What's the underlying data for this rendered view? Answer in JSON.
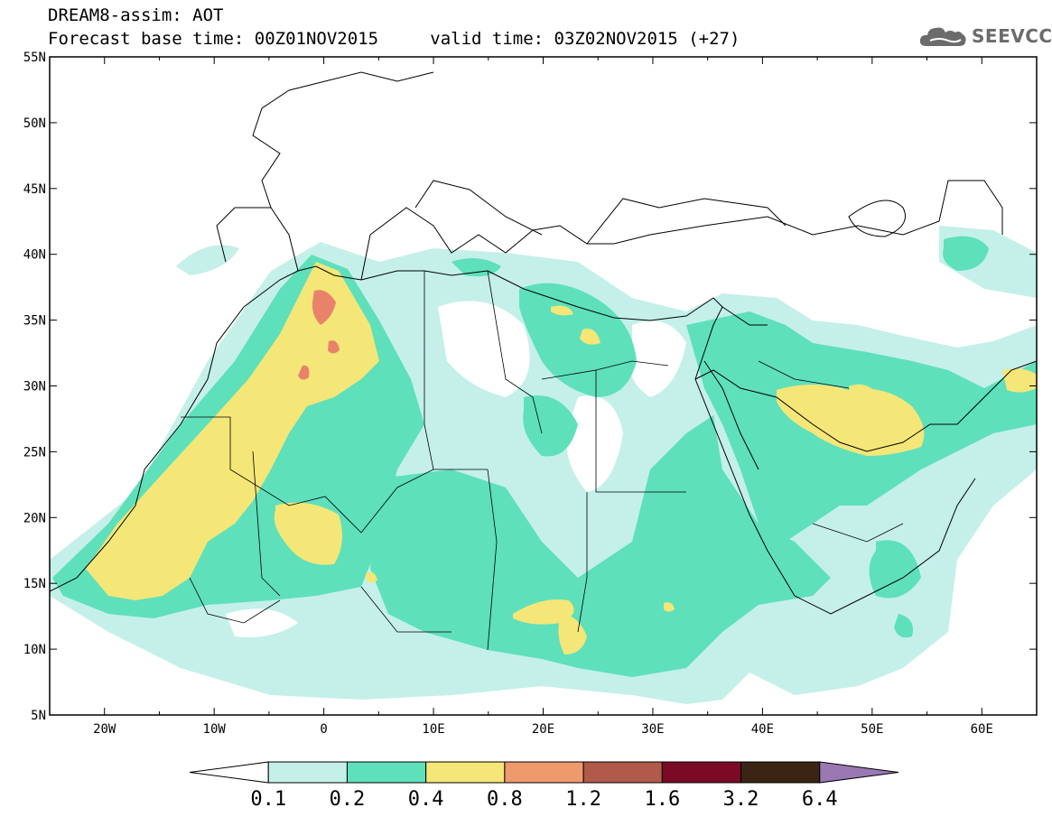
{
  "header": {
    "title": "DREAM8-assim: AOT",
    "base_time_label": "Forecast base time: 00Z01NOV2015",
    "valid_time_label": "valid time: 03Z02NOV2015 (+27)"
  },
  "logo": {
    "text": "SEEVCCC",
    "icon": "cloud-icon"
  },
  "map": {
    "lon_range": [
      -25,
      65
    ],
    "lat_range": [
      5,
      55
    ],
    "lon_ticks": [
      {
        "value": -20,
        "label": "20W"
      },
      {
        "value": -10,
        "label": "10W"
      },
      {
        "value": 0,
        "label": "0"
      },
      {
        "value": 10,
        "label": "10E"
      },
      {
        "value": 20,
        "label": "20E"
      },
      {
        "value": 30,
        "label": "30E"
      },
      {
        "value": 40,
        "label": "40E"
      },
      {
        "value": 50,
        "label": "50E"
      },
      {
        "value": 60,
        "label": "60E"
      }
    ],
    "lat_ticks": [
      {
        "value": 55,
        "label": "55N"
      },
      {
        "value": 50,
        "label": "50N"
      },
      {
        "value": 45,
        "label": "45N"
      },
      {
        "value": 40,
        "label": "40N"
      },
      {
        "value": 35,
        "label": "35N"
      },
      {
        "value": 30,
        "label": "30N"
      },
      {
        "value": 25,
        "label": "25N"
      },
      {
        "value": 20,
        "label": "20N"
      },
      {
        "value": 15,
        "label": "15N"
      },
      {
        "value": 10,
        "label": "10N"
      },
      {
        "value": 5,
        "label": "5N"
      }
    ]
  },
  "colorbar": {
    "colors": [
      "#ffffff",
      "#c4f0e9",
      "#5ee0bb",
      "#f5e678",
      "#ef9a6c",
      "#b15a4a",
      "#7a0a26",
      "#3a2515",
      "#9a78b4"
    ],
    "labels": [
      "0.1",
      "0.2",
      "0.4",
      "0.8",
      "1.2",
      "1.6",
      "3.2",
      "6.4"
    ]
  }
}
